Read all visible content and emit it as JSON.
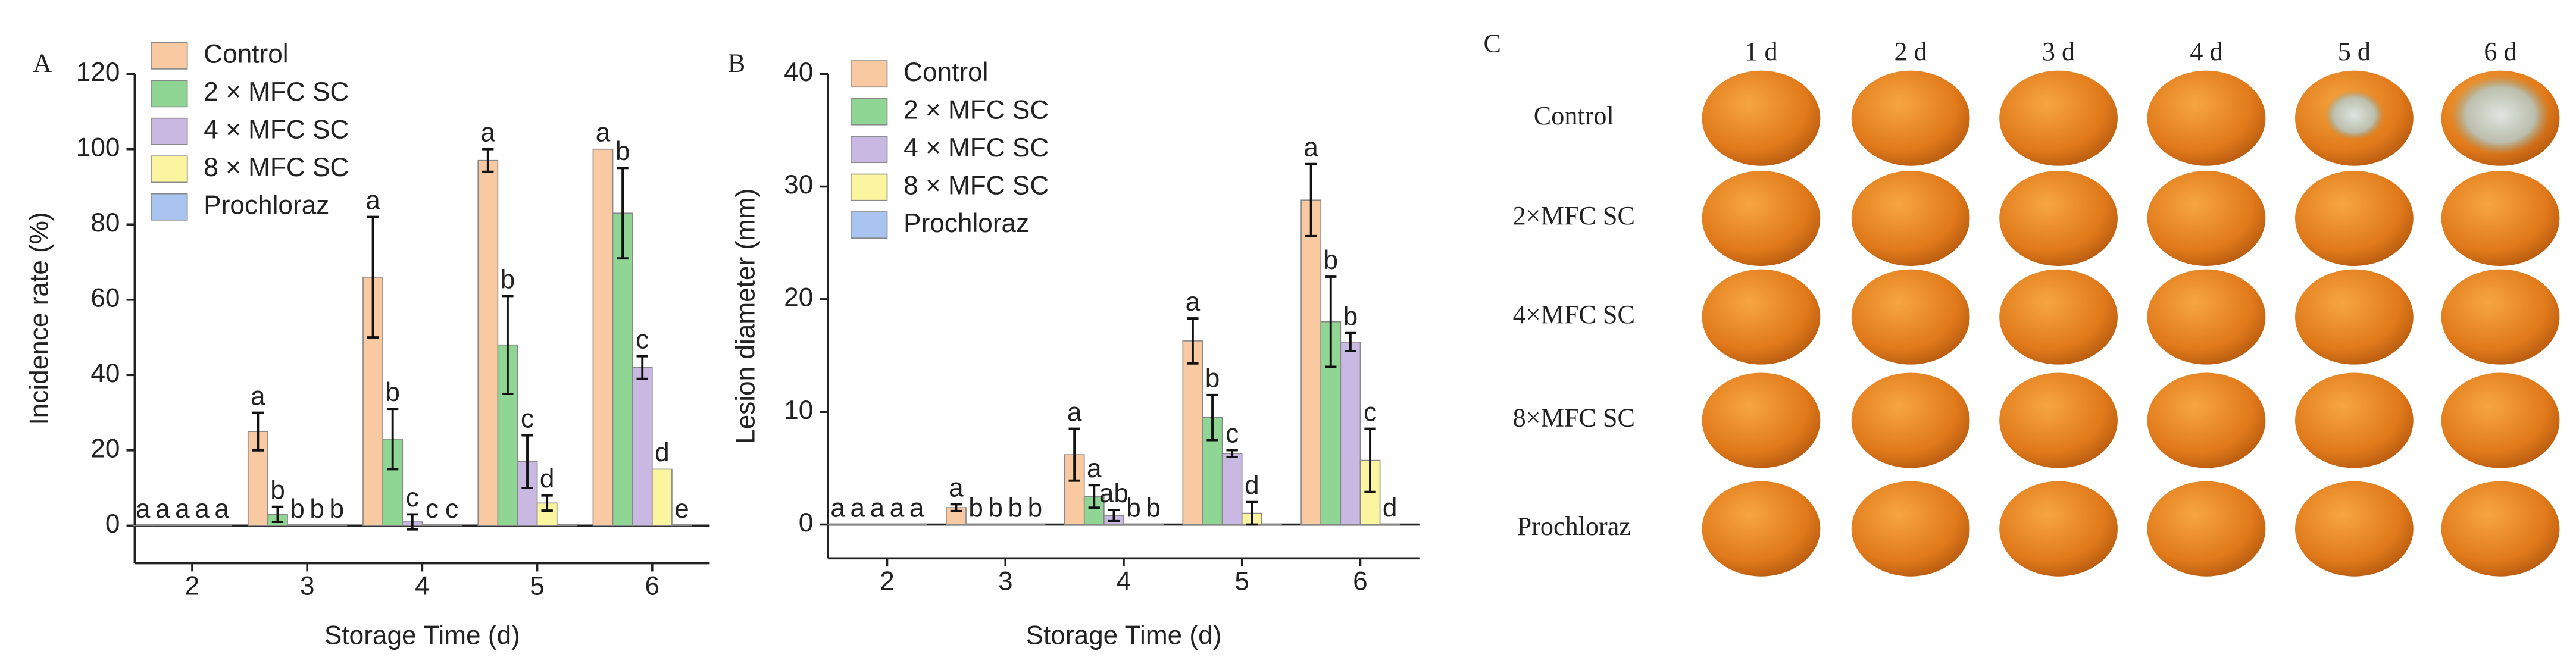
{
  "chart_data": [
    {
      "type": "bar",
      "panel_label": "A",
      "xlabel": "Storage Time (d)",
      "ylabel": "Incidence rate (%)",
      "categories": [
        "2",
        "3",
        "4",
        "5",
        "6"
      ],
      "series": [
        {
          "name": "Control",
          "color": "#f9c9a2",
          "values": [
            0,
            25,
            66,
            97,
            100
          ],
          "errors": [
            0,
            5,
            16,
            3,
            0
          ],
          "letters": [
            "a",
            "a",
            "a",
            "a",
            "a"
          ]
        },
        {
          "name": "2 × MFC SC",
          "color": "#8fd694",
          "values": [
            0,
            3,
            23,
            48,
            83
          ],
          "errors": [
            0,
            2,
            8,
            13,
            12
          ],
          "letters": [
            "a",
            "b",
            "b",
            "b",
            "b"
          ]
        },
        {
          "name": "4 × MFC SC",
          "color": "#c8b8e2",
          "values": [
            0,
            0,
            1,
            17,
            42
          ],
          "errors": [
            0,
            0,
            2,
            7,
            3
          ],
          "letters": [
            "a",
            "b",
            "c",
            "c",
            "c"
          ]
        },
        {
          "name": "8 × MFC SC",
          "color": "#fbf5a0",
          "values": [
            0,
            0,
            0,
            6,
            15
          ],
          "errors": [
            0,
            0,
            0,
            2,
            0
          ],
          "letters": [
            "a",
            "b",
            "c",
            "d",
            "d"
          ]
        },
        {
          "name": "Prochloraz",
          "color": "#a9c4f0",
          "values": [
            0,
            0,
            0,
            0,
            0
          ],
          "errors": [
            0,
            0,
            0,
            0,
            0
          ],
          "letters": [
            "a",
            "b",
            "c",
            null,
            "e"
          ]
        }
      ],
      "ylim": [
        -10,
        120
      ],
      "yticks": [
        0,
        20,
        40,
        60,
        80,
        100,
        120
      ],
      "legend": "upper left"
    },
    {
      "type": "bar",
      "panel_label": "B",
      "xlabel": "Storage Time (d)",
      "ylabel": "Lesion diameter (mm)",
      "categories": [
        "2",
        "3",
        "4",
        "5",
        "6"
      ],
      "series": [
        {
          "name": "Control",
          "color": "#f9c9a2",
          "values": [
            0,
            1.5,
            6.2,
            16.3,
            28.8
          ],
          "errors": [
            0,
            0.3,
            2.3,
            2,
            3.2
          ],
          "letters": [
            "a",
            "a",
            "a",
            "a",
            "a"
          ]
        },
        {
          "name": "2 × MFC SC",
          "color": "#8fd694",
          "values": [
            0,
            0,
            2.5,
            9.5,
            18
          ],
          "errors": [
            0,
            0,
            1,
            2,
            4
          ],
          "letters": [
            "a",
            "b",
            "a",
            "b",
            "b"
          ]
        },
        {
          "name": "4 × MFC SC",
          "color": "#c8b8e2",
          "values": [
            0,
            0,
            0.8,
            6.3,
            16.2
          ],
          "errors": [
            0,
            0,
            0.5,
            0.3,
            0.8
          ],
          "letters": [
            "a",
            "b",
            "ab",
            "c",
            "b"
          ]
        },
        {
          "name": "8 × MFC SC",
          "color": "#fbf5a0",
          "values": [
            0,
            0,
            0,
            1,
            5.7
          ],
          "errors": [
            0,
            0,
            0,
            1,
            2.8
          ],
          "letters": [
            "a",
            "b",
            "b",
            "d",
            "c"
          ]
        },
        {
          "name": "Prochloraz",
          "color": "#a9c4f0",
          "values": [
            0,
            0,
            0,
            0,
            0
          ],
          "errors": [
            0,
            0,
            0,
            0,
            0
          ],
          "letters": [
            "a",
            "b",
            "b",
            null,
            "d"
          ]
        }
      ],
      "ylim": [
        -3,
        40
      ],
      "yticks": [
        0,
        10,
        20,
        30,
        40
      ],
      "legend": "upper left"
    }
  ],
  "photo_panel": {
    "label": "C",
    "columns": [
      "1 d",
      "2 d",
      "3 d",
      "4 d",
      "5 d",
      "6 d"
    ],
    "rows": [
      "Control",
      "2×MFC  SC",
      "4×MFC SC",
      "8×MFC SC",
      "Prochloraz"
    ]
  }
}
